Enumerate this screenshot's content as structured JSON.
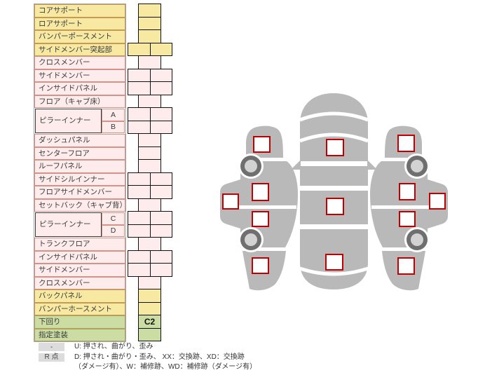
{
  "colors": {
    "row_yellow": "#f7e8a2",
    "row_pink": "#fdeceb",
    "row_green": "#cbdda2",
    "border_yellow": "#c69a50",
    "border_pink": "#d29488",
    "border_green": "#b0a05c",
    "marker_border": "#c00000",
    "car_body": "#b9b9b9",
    "wheel_ring": "#6f6f6f",
    "wheel_hub": "#d2d2d2",
    "legend_badge_bg": "#dcdcdc"
  },
  "parts_table": {
    "rows": [
      {
        "label": "コアサポート",
        "color": "yellow",
        "cells": "single"
      },
      {
        "label": "ロアサポート",
        "color": "yellow",
        "cells": "single"
      },
      {
        "label": "バンパーポースメント",
        "color": "yellow",
        "cells": "single"
      },
      {
        "label": "サイドメンバー突起部",
        "color": "yellow",
        "cells": "double"
      },
      {
        "label": "クロスメンバー",
        "color": "pink",
        "cells": "single"
      },
      {
        "label": "サイドメンバー",
        "color": "pink",
        "cells": "double"
      },
      {
        "label": "インサイドパネル",
        "color": "pink",
        "cells": "double"
      },
      {
        "label": "フロア（キャブ床）",
        "color": "pink",
        "cells": "single"
      },
      {
        "label": "ピラーインナー",
        "color": "pink",
        "cells": "double",
        "sub": [
          "A",
          "B"
        ]
      },
      {
        "label": "ダッシュパネル",
        "color": "pink",
        "cells": "single"
      },
      {
        "label": "センターフロア",
        "color": "pink",
        "cells": "single"
      },
      {
        "label": "ルーフパネル",
        "color": "pink",
        "cells": "single"
      },
      {
        "label": "サイドシルインナー",
        "color": "pink",
        "cells": "double"
      },
      {
        "label": "フロアサイドメンバー",
        "color": "pink",
        "cells": "double"
      },
      {
        "label": "セットバック（キャブ背）",
        "color": "pink",
        "cells": "single"
      },
      {
        "label": "ピラーインナー",
        "color": "pink",
        "cells": "double",
        "sub": [
          "C",
          "D"
        ]
      },
      {
        "label": "トランクフロア",
        "color": "pink",
        "cells": "single"
      },
      {
        "label": "インサイドパネル",
        "color": "pink",
        "cells": "double"
      },
      {
        "label": "サイドメンバー",
        "color": "pink",
        "cells": "double"
      },
      {
        "label": "クロスメンバー",
        "color": "pink",
        "cells": "single"
      },
      {
        "label": "バックパネル",
        "color": "yellow",
        "cells": "single"
      },
      {
        "label": "バンパーホースメント",
        "color": "yellow",
        "cells": "single"
      },
      {
        "label": "下回り",
        "color": "green",
        "cells": "single",
        "value": "C2"
      },
      {
        "label": "指定塗装",
        "color": "green",
        "cells": "single"
      }
    ]
  },
  "legend": {
    "rows": [
      {
        "badge": "-",
        "text": "U: 押され、曲がり、歪み"
      },
      {
        "badge": "R 点",
        "text": "D: 押され・曲がり・歪み、 XX：交換跡、XD：交換跡"
      },
      {
        "badge": "",
        "text": "（ダメージ有）、W：補修跡、WD：補修跡（ダメージ有）"
      }
    ]
  },
  "car_diagram": {
    "views": [
      "left-side-view",
      "top-view",
      "right-side-view"
    ],
    "markers": {
      "top_view": [
        "hood",
        "roof-center",
        "trunk"
      ],
      "left_side": [
        "front-fender",
        "front-door",
        "rear-door",
        "rear-fender",
        "door-panel"
      ],
      "right_side": [
        "front-fender",
        "front-door",
        "rear-door",
        "rear-fender",
        "door-panel"
      ]
    }
  }
}
